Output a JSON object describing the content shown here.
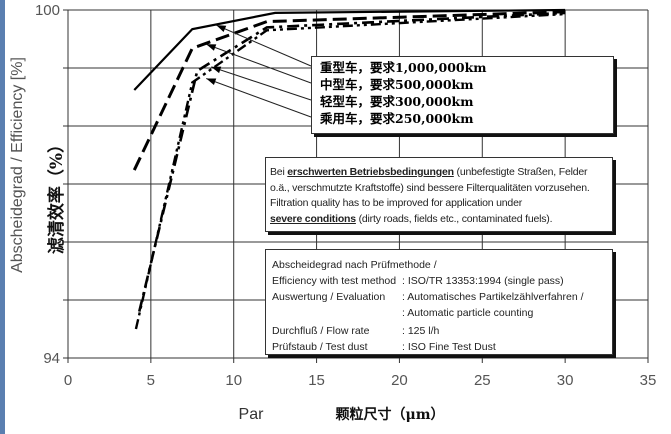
{
  "chart_data": {
    "type": "line",
    "xlabel": "Par",
    "xlabel_cn": "颗粒尺寸（μm）",
    "ylabel": "Abscheidegrad / Efficiency [%]",
    "ylabel_cn": "滤清效率（%）",
    "xlim": [
      0,
      35
    ],
    "ylim": [
      94,
      100
    ],
    "xticks": [
      0,
      5,
      10,
      15,
      20,
      25,
      30,
      35
    ],
    "yticks": [
      94,
      95,
      96,
      97,
      98,
      99,
      100
    ],
    "ytick_labels": {
      "100": "100",
      "94": "94"
    },
    "grid": true,
    "series": [
      {
        "name": "重型车，要求1,000,000km",
        "style": "solid",
        "x": [
          4,
          7.5,
          12.5,
          30
        ],
        "y": [
          98.62,
          99.67,
          99.95,
          100
        ]
      },
      {
        "name": "中型车，要求500,000km",
        "style": "dashed",
        "x": [
          4,
          7.5,
          12,
          30
        ],
        "y": [
          97.24,
          99.34,
          99.8,
          99.97
        ]
      },
      {
        "name": "轻型车，要求300,000km",
        "style": "dashdot",
        "x": [
          4.3,
          7.8,
          12,
          30
        ],
        "y": [
          94.8,
          98.95,
          99.7,
          99.95
        ]
      },
      {
        "name": "乘用车，要求250,000km",
        "style": "dashdotdot",
        "x": [
          4.1,
          7.5,
          12,
          30
        ],
        "y": [
          94.5,
          98.75,
          99.65,
          99.93
        ]
      }
    ],
    "legend_position": "top-right"
  },
  "note": {
    "l1a": "Bei ",
    "l1b": "erschwerten Betriebsbedingungen",
    "l1c": " (unbefestigte Straßen, Felder",
    "l2": "o.ä., verschmutzte Kraftstoffe) sind bessere Filterqualitäten vorzusehen.",
    "l3": "Filtration quality has to be improved for application under",
    "l4a": "severe conditions",
    "l4b": " (dirty roads, fields etc., contaminated fuels)."
  },
  "method": {
    "title": "Abscheidegrad nach Prüfmethode /",
    "rows": [
      {
        "k": "Efficiency with test method",
        "v": ": ISO/TR 13353:1994 (single pass)"
      },
      {
        "k": "Auswertung / Evaluation",
        "v": ": Automatisches Partikelzählverfahren /"
      },
      {
        "k": "",
        "v": ": Automatic particle counting"
      },
      {
        "k": "Durchfluß / Flow rate",
        "v": ": 125 l/h"
      },
      {
        "k": "Prüfstaub / Test dust",
        "v": ": ISO Fine Test Dust"
      }
    ]
  }
}
